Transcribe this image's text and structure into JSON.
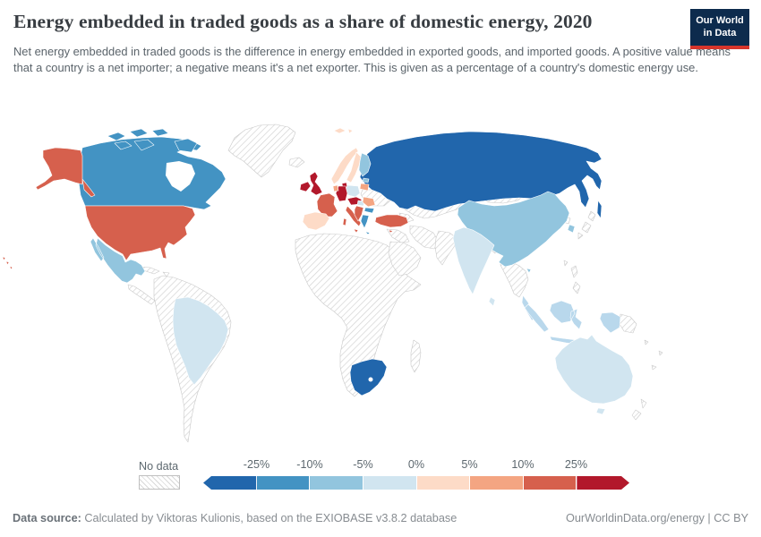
{
  "header": {
    "title": "Energy embedded in traded goods as a share of domestic energy, 2020",
    "subtitle": "Net energy embedded in traded goods is the difference in energy embedded in exported goods, and imported goods. A positive value means that a country is a net importer; a negative means it's a net exporter. This is given as a percentage of a country's domestic energy use.",
    "logo": {
      "line1": "Our World",
      "line2": "in Data",
      "bg_color": "#0d2b4d",
      "accent_color": "#d7352b"
    }
  },
  "legend": {
    "no_data_label": "No data",
    "ticks": [
      "-25%",
      "-10%",
      "-5%",
      "0%",
      "5%",
      "10%",
      "25%"
    ],
    "colors": [
      "#2166ac",
      "#4393c3",
      "#92c5de",
      "#d1e5f0",
      "#fddbc7",
      "#f4a582",
      "#d6604d",
      "#b2182b"
    ]
  },
  "footer": {
    "source_label": "Data source:",
    "source_text": " Calculated by Viktoras Kulionis, based on the EXIOBASE v3.8.2 database",
    "right_text": "OurWorldinData.org/energy | CC BY"
  },
  "chart_data": {
    "type": "choropleth-map",
    "title": "Energy embedded in traded goods as a share of domestic energy, 2020",
    "unit": "% of a country's domestic energy use",
    "bins": [
      {
        "range": "< -25%",
        "color": "#2166ac"
      },
      {
        "range": "-25% to -10%",
        "color": "#4393c3"
      },
      {
        "range": "-10% to -5%",
        "color": "#92c5de"
      },
      {
        "range": "-5% to 0%",
        "color": "#d1e5f0"
      },
      {
        "range": "0% to 5%",
        "color": "#fddbc7"
      },
      {
        "range": "5% to 10%",
        "color": "#f4a582"
      },
      {
        "range": "10% to 25%",
        "color": "#d6604d"
      },
      {
        "range": "> 25%",
        "color": "#b2182b"
      }
    ],
    "regions": {
      "russia": {
        "label": "Russia",
        "bin": "< -25%",
        "color": "#2166ac"
      },
      "south-africa": {
        "label": "South Africa",
        "bin": "< -25%",
        "color": "#2166ac"
      },
      "canada": {
        "label": "Canada",
        "bin": "-25% to -10%",
        "color": "#4393c3"
      },
      "greece": {
        "label": "Greece",
        "bin": "-25% to -10%",
        "color": "#4393c3"
      },
      "bulgaria": {
        "label": "Bulgaria",
        "bin": "-25% to -10%",
        "color": "#4393c3"
      },
      "mexico": {
        "label": "Mexico",
        "bin": "-10% to -5%",
        "color": "#92c5de"
      },
      "china": {
        "label": "China",
        "bin": "-10% to -5%",
        "color": "#92c5de"
      },
      "finland": {
        "label": "Finland",
        "bin": "-10% to -5%",
        "color": "#92c5de"
      },
      "south-korea": {
        "label": "South Korea",
        "bin": "-10% to -5%",
        "color": "#92c5de"
      },
      "estonia": {
        "label": "Estonia",
        "bin": "-10% to -5%",
        "color": "#92c5de"
      },
      "indonesia": {
        "label": "Indonesia",
        "bin": "-10% to -5%",
        "color": "#b9d8ec"
      },
      "malaysia": {
        "label": "Malaysia",
        "bin": "-10% to -5%",
        "color": "#b9d8ec"
      },
      "brazil": {
        "label": "Brazil",
        "bin": "-5% to 0%",
        "color": "#d1e5f0"
      },
      "india": {
        "label": "India",
        "bin": "-5% to 0%",
        "color": "#d1e5f0"
      },
      "australia": {
        "label": "Australia",
        "bin": "-5% to 0%",
        "color": "#d1e5f0"
      },
      "poland": {
        "label": "Poland",
        "bin": "-5% to 0%",
        "color": "#d1e5f0"
      },
      "hungary": {
        "label": "Hungary",
        "bin": "-5% to 0%",
        "color": "#d1e5f0"
      },
      "sri-lanka": {
        "label": "Sri Lanka",
        "bin": "-5% to 0%",
        "color": "#d1e5f0"
      },
      "norway": {
        "label": "Norway",
        "bin": "0% to 5%",
        "color": "#fddbc7"
      },
      "sweden": {
        "label": "Sweden",
        "bin": "0% to 5%",
        "color": "#fddbc7"
      },
      "spain-portugal": {
        "label": "Spain / Portugal",
        "bin": "0% to 5%",
        "color": "#fddbc7"
      },
      "svalbard": {
        "label": "Svalbard (Norway)",
        "bin": "0% to 5%",
        "color": "#fddbc7"
      },
      "romania": {
        "label": "Romania",
        "bin": "5% to 10%",
        "color": "#f4a582"
      },
      "latvia-lithuania": {
        "label": "Latvia / Lithuania",
        "bin": "5% to 10%",
        "color": "#f4a582"
      },
      "benelux": {
        "label": "Netherlands / Belgium",
        "bin": "5% to 10%",
        "color": "#f4a582"
      },
      "usa": {
        "label": "United States",
        "bin": "10% to 25%",
        "color": "#d6604d"
      },
      "hawaii": {
        "label": "Hawaii (US)",
        "bin": "10% to 25%",
        "color": "#d6604d"
      },
      "france": {
        "label": "France",
        "bin": "10% to 25%",
        "color": "#d6604d"
      },
      "italy": {
        "label": "Italy",
        "bin": "10% to 25%",
        "color": "#d6604d"
      },
      "turkey": {
        "label": "Turkey",
        "bin": "10% to 25%",
        "color": "#d6604d"
      },
      "balkans": {
        "label": "Western Balkans",
        "bin": "10% to 25%",
        "color": "#d6604d"
      },
      "cyprus": {
        "label": "Cyprus",
        "bin": "10% to 25%",
        "color": "#d6604d"
      },
      "uk": {
        "label": "United Kingdom",
        "bin": "> 25%",
        "color": "#b2182b"
      },
      "ireland": {
        "label": "Ireland",
        "bin": "> 25%",
        "color": "#b2182b"
      },
      "germany": {
        "label": "Germany",
        "bin": "> 25%",
        "color": "#b2182b"
      },
      "denmark": {
        "label": "Denmark",
        "bin": "> 25%",
        "color": "#b2182b"
      },
      "alps": {
        "label": "Switzerland / Austria",
        "bin": "> 25%",
        "color": "#b2182b"
      },
      "no-data": {
        "label": "No data",
        "bin": "No data",
        "color": "no-data"
      }
    }
  }
}
